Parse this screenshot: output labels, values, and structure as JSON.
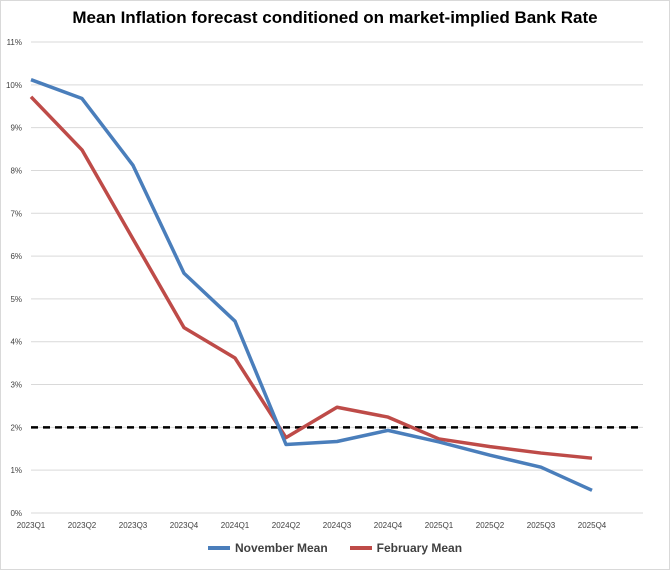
{
  "chart_data": {
    "type": "line",
    "title": "Mean Inflation forecast conditioned on market-implied Bank Rate",
    "xlabel": "",
    "ylabel": "",
    "categories": [
      "2023Q1",
      "2023Q2",
      "2023Q3",
      "2023Q4",
      "2024Q1",
      "2024Q2",
      "2024Q3",
      "2024Q4",
      "2025Q1",
      "2025Q2",
      "2025Q3",
      "2025Q4"
    ],
    "ylim": [
      0,
      11
    ],
    "yticks": [
      "0%",
      "1%",
      "2%",
      "3%",
      "4%",
      "5%",
      "6%",
      "7%",
      "8%",
      "9%",
      "10%",
      "11%"
    ],
    "grid": true,
    "legend_position": "bottom",
    "reference_line": {
      "value": 2,
      "style": "dashed",
      "color": "#000000"
    },
    "series": [
      {
        "name": "November Mean",
        "color": "#4a7ebb",
        "values": [
          10.12,
          9.68,
          8.12,
          5.6,
          4.48,
          1.6,
          1.67,
          1.93,
          1.66,
          1.35,
          1.07,
          0.53
        ]
      },
      {
        "name": "February Mean",
        "color": "#be4b48",
        "values": [
          9.72,
          8.48,
          6.4,
          4.33,
          3.62,
          1.76,
          2.47,
          2.24,
          1.73,
          1.55,
          1.4,
          1.28
        ]
      }
    ]
  }
}
